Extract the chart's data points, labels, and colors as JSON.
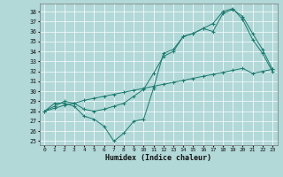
{
  "line1_x": [
    0,
    1,
    2,
    3,
    4,
    5,
    6,
    7,
    8,
    9,
    10,
    11,
    12,
    13,
    14,
    15,
    16,
    17,
    18,
    19,
    20,
    21,
    22,
    23
  ],
  "line1_y": [
    28.0,
    28.3,
    28.6,
    28.8,
    29.1,
    29.3,
    29.5,
    29.7,
    29.9,
    30.1,
    30.3,
    30.5,
    30.7,
    30.9,
    31.1,
    31.3,
    31.5,
    31.7,
    31.9,
    32.1,
    32.3,
    31.8,
    32.0,
    32.2
  ],
  "line2_x": [
    0,
    1,
    2,
    3,
    4,
    5,
    6,
    7,
    8,
    9,
    10,
    11,
    12,
    13,
    14,
    15,
    16,
    17,
    18,
    19,
    20,
    21,
    22,
    23
  ],
  "line2_y": [
    28.0,
    28.8,
    28.8,
    28.5,
    27.5,
    27.2,
    26.5,
    25.0,
    25.8,
    27.0,
    27.2,
    30.3,
    33.8,
    34.2,
    35.5,
    35.8,
    36.3,
    36.0,
    37.8,
    38.2,
    37.5,
    35.8,
    34.2,
    32.2
  ],
  "line3_x": [
    0,
    1,
    2,
    3,
    4,
    5,
    6,
    7,
    8,
    9,
    10,
    11,
    12,
    13,
    14,
    15,
    16,
    17,
    18,
    19,
    20,
    21,
    22,
    23
  ],
  "line3_y": [
    28.0,
    28.5,
    29.0,
    28.8,
    28.2,
    28.0,
    28.2,
    28.5,
    28.8,
    29.5,
    30.2,
    31.8,
    33.5,
    34.0,
    35.5,
    35.8,
    36.3,
    36.8,
    38.0,
    38.3,
    37.2,
    35.2,
    33.8,
    32.0
  ],
  "color": "#1a7a6e",
  "bg_color": "#b2d8d8",
  "grid_color": "#ffffff",
  "xlabel": "Humidex (Indice chaleur)",
  "ylim": [
    24.6,
    38.8
  ],
  "xlim": [
    -0.5,
    23.5
  ],
  "yticks": [
    25,
    26,
    27,
    28,
    29,
    30,
    31,
    32,
    33,
    34,
    35,
    36,
    37,
    38
  ],
  "xticks": [
    0,
    1,
    2,
    3,
    4,
    5,
    6,
    7,
    8,
    9,
    10,
    11,
    12,
    13,
    14,
    15,
    16,
    17,
    18,
    19,
    20,
    21,
    22,
    23
  ],
  "marker": "+"
}
